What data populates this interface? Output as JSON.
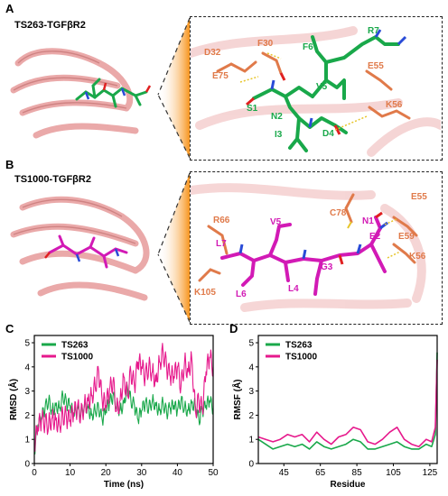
{
  "panels": {
    "A": {
      "letter": "A",
      "title": "TS263-TGFβR2"
    },
    "B": {
      "letter": "B",
      "title": "TS1000-TGFβR2"
    },
    "C": {
      "letter": "C"
    },
    "D": {
      "letter": "D"
    }
  },
  "residues_A": {
    "peptide": [
      "F6",
      "R7",
      "V5",
      "S1",
      "N2",
      "I3",
      "D4"
    ],
    "receptor": [
      "D32",
      "F30",
      "E75",
      "E55",
      "K56"
    ]
  },
  "residues_B": {
    "peptide": [
      "V5",
      "L7",
      "L6",
      "L4",
      "G3",
      "E2",
      "N1"
    ],
    "receptor": [
      "R66",
      "K105",
      "C78",
      "E55",
      "E59",
      "K56"
    ]
  },
  "colors": {
    "green": "#19a84a",
    "magenta": "#e6198c",
    "orange": "#e07a4a",
    "ribbon": "#e8a0a0"
  },
  "chart_data": [
    {
      "type": "line",
      "xlabel": "Time (ns)",
      "ylabel": "RMSD (Å)",
      "xlim": [
        0,
        50
      ],
      "ylim": [
        0,
        5.3
      ],
      "xticks": [
        0,
        10,
        20,
        30,
        40,
        50
      ],
      "yticks": [
        0,
        1,
        2,
        3,
        4,
        5
      ],
      "legend_position": "top-left",
      "series": [
        {
          "name": "TS263",
          "color": "#19a84a",
          "x": [
            0,
            1,
            2,
            3,
            4,
            5,
            6,
            7,
            8,
            9,
            10,
            11,
            12,
            13,
            14,
            15,
            16,
            17,
            18,
            19,
            20,
            21,
            22,
            23,
            24,
            25,
            26,
            27,
            28,
            29,
            30,
            31,
            32,
            33,
            34,
            35,
            36,
            37,
            38,
            39,
            40,
            41,
            42,
            43,
            44,
            45,
            46,
            47,
            48,
            49,
            50
          ],
          "values": [
            0.5,
            1.6,
            1.9,
            2.3,
            2.6,
            2.2,
            2.4,
            2.3,
            2.8,
            2.5,
            2.4,
            2.0,
            2.2,
            2.1,
            2.4,
            2.3,
            2.0,
            2.2,
            2.3,
            1.8,
            2.2,
            2.5,
            2.8,
            2.4,
            2.2,
            2.5,
            3.2,
            2.6,
            2.4,
            1.8,
            2.2,
            2.5,
            2.3,
            2.6,
            2.4,
            2.2,
            2.5,
            2.1,
            2.3,
            2.4,
            2.2,
            2.6,
            2.3,
            2.2,
            2.5,
            2.4,
            1.8,
            2.2,
            2.4,
            2.6,
            2.3
          ]
        },
        {
          "name": "TS1000",
          "color": "#e6198c",
          "x": [
            0,
            1,
            2,
            3,
            4,
            5,
            6,
            7,
            8,
            9,
            10,
            11,
            12,
            13,
            14,
            15,
            16,
            17,
            18,
            19,
            20,
            21,
            22,
            23,
            24,
            25,
            26,
            27,
            28,
            29,
            30,
            31,
            32,
            33,
            34,
            35,
            36,
            37,
            38,
            39,
            40,
            41,
            42,
            43,
            44,
            45,
            46,
            47,
            48,
            49,
            50
          ],
          "values": [
            0.8,
            1.5,
            1.8,
            1.7,
            1.6,
            1.9,
            1.8,
            1.6,
            2.0,
            1.9,
            1.8,
            2.1,
            2.3,
            2.0,
            2.4,
            2.6,
            2.8,
            3.2,
            3.8,
            2.6,
            2.4,
            3.0,
            3.4,
            2.2,
            2.6,
            3.6,
            2.8,
            3.8,
            3.2,
            4.2,
            4.0,
            3.6,
            4.0,
            3.8,
            3.4,
            4.2,
            4.6,
            4.0,
            3.6,
            3.6,
            4.0,
            3.2,
            4.2,
            3.8,
            4.4,
            2.2,
            2.6,
            2.2,
            3.8,
            4.4,
            4.0
          ]
        }
      ]
    },
    {
      "type": "line",
      "xlabel": "Residue",
      "ylabel": "RMSF (Å)",
      "xlim": [
        31,
        129
      ],
      "ylim": [
        0,
        5.3
      ],
      "xticks": [
        45,
        65,
        85,
        105,
        125
      ],
      "yticks": [
        0,
        1,
        2,
        3,
        4,
        5
      ],
      "legend_position": "top-left",
      "series": [
        {
          "name": "TS263",
          "color": "#19a84a",
          "x": [
            31,
            35,
            39,
            43,
            47,
            51,
            55,
            59,
            63,
            67,
            71,
            75,
            79,
            83,
            87,
            91,
            95,
            99,
            103,
            107,
            111,
            115,
            119,
            123,
            126,
            128,
            129
          ],
          "values": [
            1.0,
            0.8,
            0.6,
            0.7,
            0.8,
            0.7,
            0.8,
            0.6,
            0.9,
            0.7,
            0.6,
            0.7,
            0.8,
            1.0,
            0.9,
            0.6,
            0.6,
            0.7,
            0.8,
            0.9,
            0.7,
            0.6,
            0.6,
            0.8,
            0.7,
            1.2,
            4.6
          ]
        },
        {
          "name": "TS1000",
          "color": "#e6198c",
          "x": [
            31,
            35,
            39,
            43,
            47,
            51,
            55,
            59,
            63,
            67,
            71,
            75,
            79,
            83,
            87,
            91,
            95,
            99,
            103,
            107,
            111,
            115,
            119,
            123,
            126,
            128,
            129
          ],
          "values": [
            1.1,
            1.0,
            0.9,
            1.0,
            1.2,
            1.1,
            1.2,
            0.9,
            1.3,
            1.0,
            0.8,
            1.1,
            1.2,
            1.5,
            1.4,
            0.9,
            0.8,
            1.0,
            1.3,
            1.5,
            1.0,
            0.8,
            0.7,
            1.0,
            0.9,
            1.5,
            4.3
          ]
        }
      ]
    }
  ]
}
